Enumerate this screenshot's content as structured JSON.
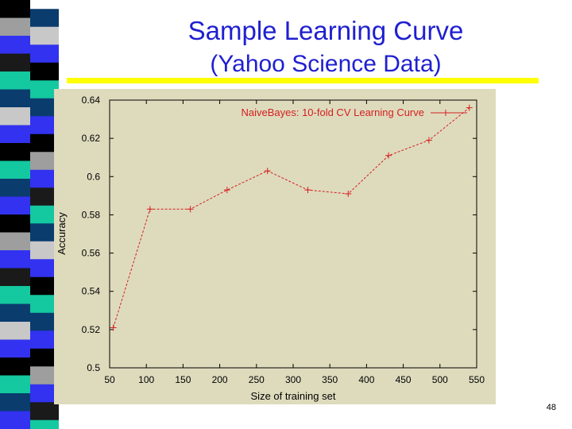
{
  "slide": {
    "title_line1": "Sample Learning Curve",
    "title_line2": "(Yahoo Science Data)",
    "slide_number": "48",
    "title_color": "#1f1fd1",
    "rule_color": "#ffff00",
    "strip_colors": [
      "#000000",
      "#9e9e9e",
      "#3232f0",
      "#1a1a1a",
      "#14c8a0",
      "#0a3c6e",
      "#c8c8c8",
      "#3232f0",
      "#000000",
      "#14c8a0",
      "#0a3c6e",
      "#3232f0"
    ]
  },
  "chart_data": {
    "type": "line",
    "title": "",
    "xlabel": "Size of training set",
    "ylabel": "Accuracy",
    "xlim": [
      50,
      550
    ],
    "ylim": [
      0.5,
      0.64
    ],
    "x_ticks": [
      "50",
      "100",
      "150",
      "200",
      "250",
      "300",
      "350",
      "400",
      "450",
      "500",
      "550"
    ],
    "y_ticks": [
      "0.5",
      "0.52",
      "0.54",
      "0.56",
      "0.58",
      "0.6",
      "0.62",
      "0.64"
    ],
    "legend_position": "top-right",
    "grid": false,
    "background_color": "#dedbbd",
    "series": [
      {
        "name": "NaiveBayes: 10-fold CV Learning Curve",
        "color": "#d42020",
        "x": [
          55,
          105,
          160,
          210,
          265,
          320,
          375,
          430,
          485,
          540
        ],
        "y": [
          0.521,
          0.583,
          0.583,
          0.593,
          0.603,
          0.593,
          0.591,
          0.611,
          0.619,
          0.636
        ]
      }
    ]
  }
}
